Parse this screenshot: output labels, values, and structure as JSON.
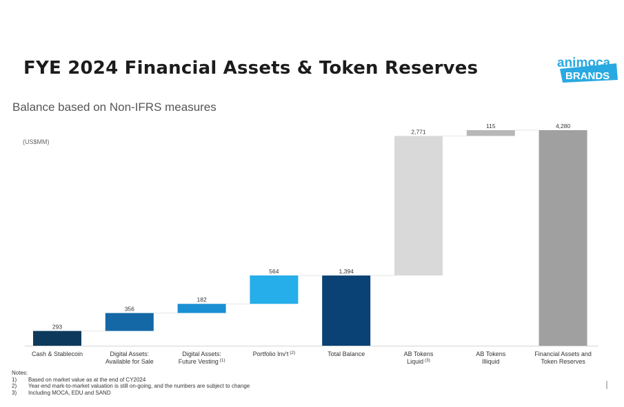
{
  "header": {
    "title": "FYE 2024 Financial Assets & Token Reserves",
    "subtitle": "Balance based on Non-IFRS measures",
    "unit_label": "(US$MM)"
  },
  "logo": {
    "line1": "animoca",
    "line2": "BRANDS",
    "color": "#29a9e1"
  },
  "notes": {
    "heading": "Notes:",
    "items": [
      {
        "num": "1)",
        "text": "Based on market value as at the end of CY2024"
      },
      {
        "num": "2)",
        "text": "Year-end mark-to-market valuation is still on-going, and the numbers are subject to change"
      },
      {
        "num": "3)",
        "text": "Including MOCA, EDU and SAND"
      }
    ]
  },
  "chart_data": {
    "type": "bar",
    "subtype": "waterfall",
    "title": "FYE 2024 Financial Assets & Token Reserves",
    "ylabel": "(US$MM)",
    "ylim": [
      0,
      4280
    ],
    "categories": [
      "Cash & Stablecoin",
      "Digital Assets: Available for Sale",
      "Digital Assets: Future Vesting (1)",
      "Portfolio Inv't (2)",
      "Total Balance",
      "AB Tokens Liquid (3)",
      "AB Tokens Illiquid",
      "Financial Assets and Token Reserves"
    ],
    "bars": [
      {
        "label_lines": [
          "Cash & Stablecoin"
        ],
        "sup": "",
        "value": 293,
        "display": "293",
        "base": 0,
        "kind": "increment",
        "color": "#0d3a5c"
      },
      {
        "label_lines": [
          "Digital Assets:",
          "Available for Sale"
        ],
        "sup": "",
        "value": 356,
        "display": "356",
        "base": 293,
        "kind": "increment",
        "color": "#1468a6"
      },
      {
        "label_lines": [
          "Digital Assets:",
          "Future Vesting"
        ],
        "sup": "(1)",
        "value": 182,
        "display": "182",
        "base": 649,
        "kind": "increment",
        "color": "#1a8fd3"
      },
      {
        "label_lines": [
          "Portfolio Inv't"
        ],
        "sup": "(2)",
        "value": 564,
        "display": "564",
        "base": 831,
        "kind": "increment",
        "color": "#25aee9"
      },
      {
        "label_lines": [
          "Total Balance"
        ],
        "sup": "",
        "value": 1394,
        "display": "1,394",
        "base": 0,
        "kind": "total",
        "color": "#0a4275"
      },
      {
        "label_lines": [
          "AB Tokens",
          "Liquid"
        ],
        "sup": "(3)",
        "value": 2771,
        "display": "2,771",
        "base": 1394,
        "kind": "increment",
        "color": "#d9d9d9"
      },
      {
        "label_lines": [
          "AB Tokens",
          "Illiquid"
        ],
        "sup": "",
        "value": 115,
        "display": "115",
        "base": 4165,
        "kind": "increment",
        "color": "#b8b8b8"
      },
      {
        "label_lines": [
          "Financial Assets and",
          "Token Reserves"
        ],
        "sup": "",
        "value": 4280,
        "display": "4,280",
        "base": 0,
        "kind": "total",
        "color": "#a0a0a0"
      }
    ]
  }
}
